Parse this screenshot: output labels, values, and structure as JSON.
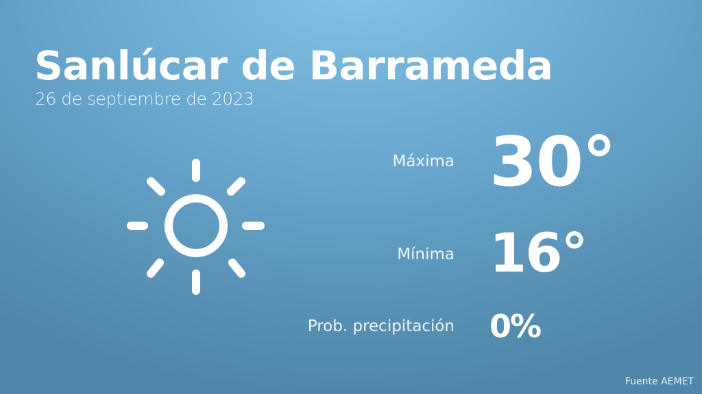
{
  "header": {
    "city": "Sanlúcar de Barrameda",
    "date": "26 de septiembre de 2023"
  },
  "weather": {
    "icon": "sun-icon",
    "max_label": "Máxima",
    "max_value": "30°",
    "min_label": "Mínima",
    "min_value": "16°",
    "precip_label": "Prob. precipitación",
    "precip_value": "0%"
  },
  "footer": {
    "source": "Fuente AEMET"
  },
  "colors": {
    "background_top": "#84c3e6",
    "background_bottom": "#4f86a8",
    "text": "#ffffff"
  }
}
